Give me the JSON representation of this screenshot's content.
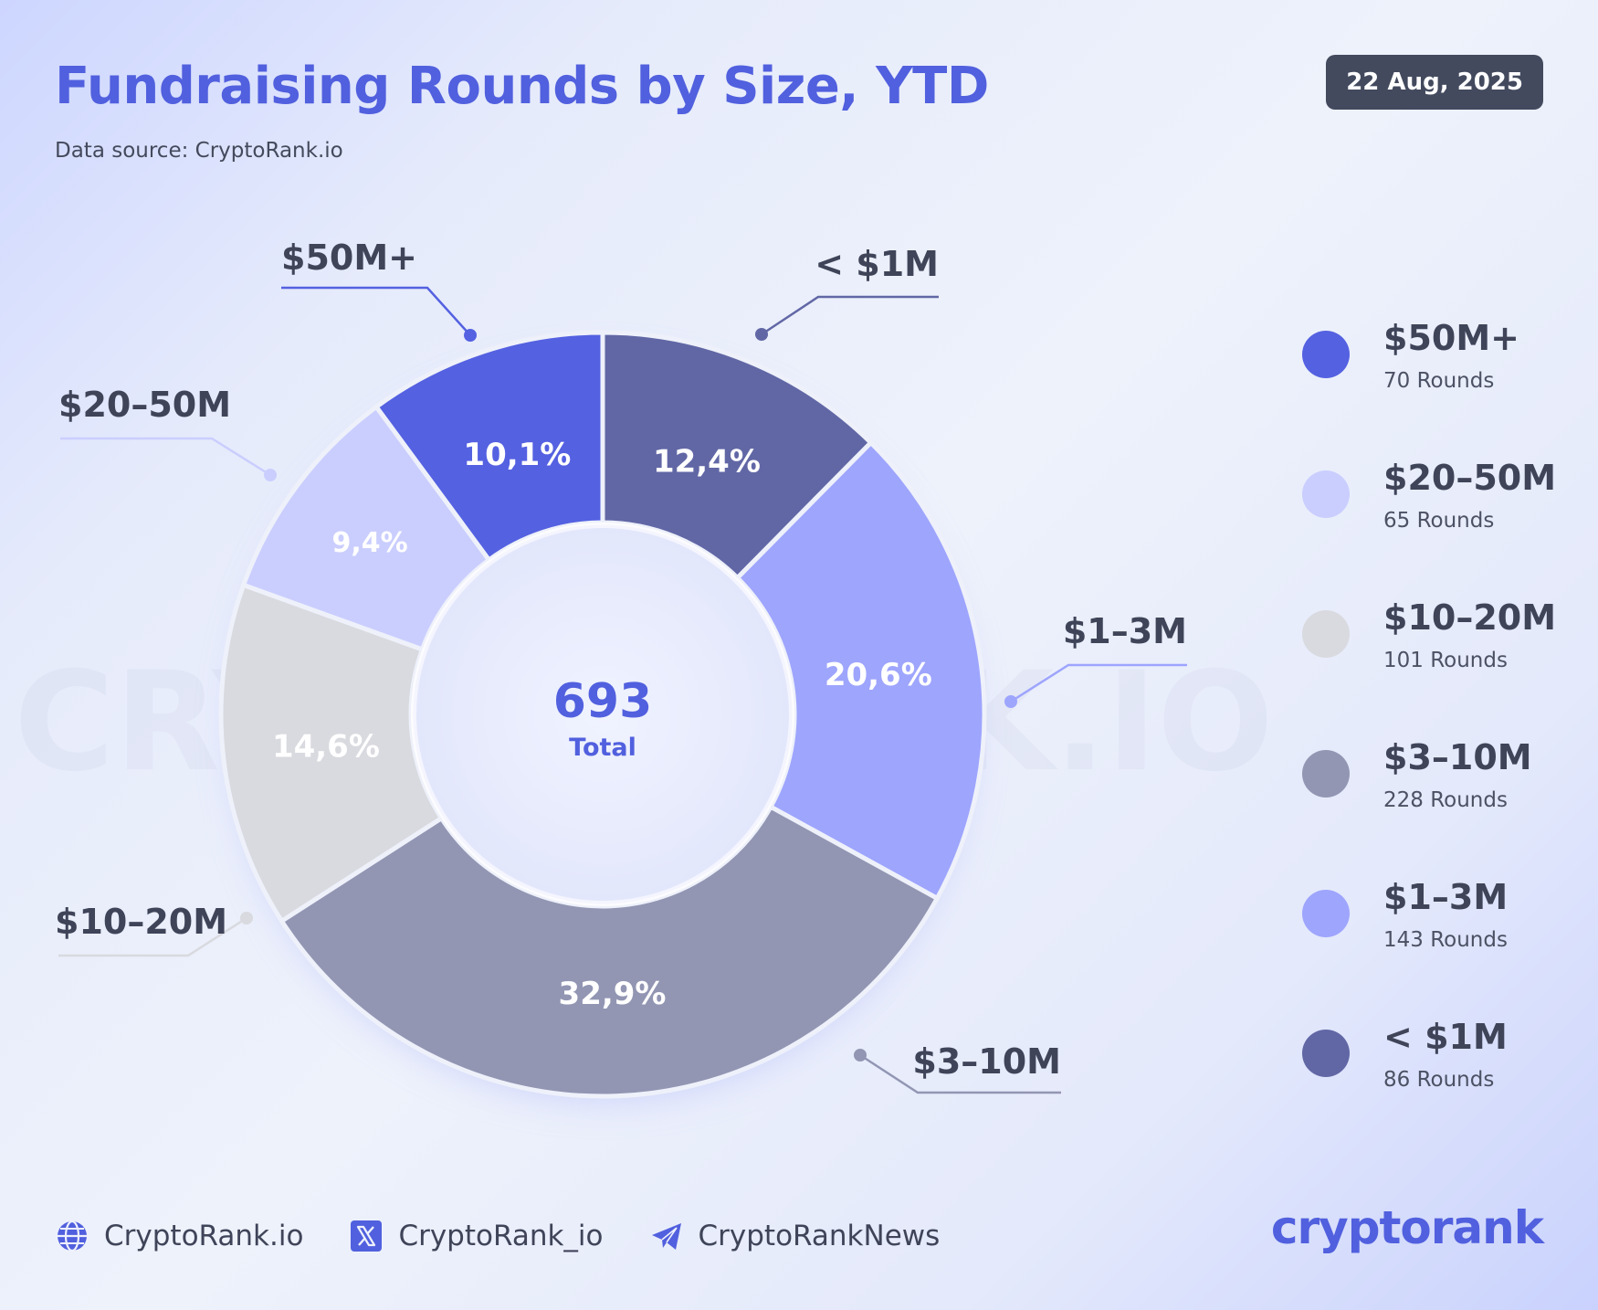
{
  "header": {
    "title": "Fundraising Rounds by Size, YTD",
    "source": "Data source: CryptoRank.io",
    "date": "22 Aug, 2025"
  },
  "chart_data": {
    "type": "pie",
    "variant": "donut",
    "title": "Fundraising Rounds by Size, YTD",
    "center_value": "693",
    "center_label": "Total",
    "watermark": "CRYPTORANK.IO",
    "slices": [
      {
        "label": "< $1M",
        "value": 12.4,
        "percent_label": "12,4%",
        "rounds": 86,
        "color": "#6167a5"
      },
      {
        "label": "$1–3M",
        "value": 20.6,
        "percent_label": "20,6%",
        "rounds": 143,
        "color": "#9ea5fd"
      },
      {
        "label": "$3–10M",
        "value": 32.9,
        "percent_label": "32,9%",
        "rounds": 228,
        "color": "#9296b3"
      },
      {
        "label": "$10–20M",
        "value": 14.6,
        "percent_label": "14,6%",
        "rounds": 101,
        "color": "#d9dadf"
      },
      {
        "label": "$20–50M",
        "value": 9.4,
        "percent_label": "9,4%",
        "rounds": 65,
        "color": "#cacefe"
      },
      {
        "label": "$50M+",
        "value": 10.1,
        "percent_label": "10,1%",
        "rounds": 70,
        "color": "#5461e1"
      }
    ]
  },
  "legend": {
    "items": [
      {
        "name": "$50M+",
        "count": "70 Rounds",
        "color": "#5461e1"
      },
      {
        "name": "$20–50M",
        "count": "65 Rounds",
        "color": "#cacefe"
      },
      {
        "name": "$10–20M",
        "count": "101 Rounds",
        "color": "#d9dadf"
      },
      {
        "name": "$3–10M",
        "count": "228 Rounds",
        "color": "#9296b3"
      },
      {
        "name": "$1–3M",
        "count": "143 Rounds",
        "color": "#9ea5fd"
      },
      {
        "name": "< $1M",
        "count": "86 Rounds",
        "color": "#6167a5"
      }
    ]
  },
  "footer": {
    "website": "CryptoRank.io",
    "x_handle": "CryptoRank_io",
    "telegram": "CryptoRankNews",
    "brand": "cryptorank"
  }
}
